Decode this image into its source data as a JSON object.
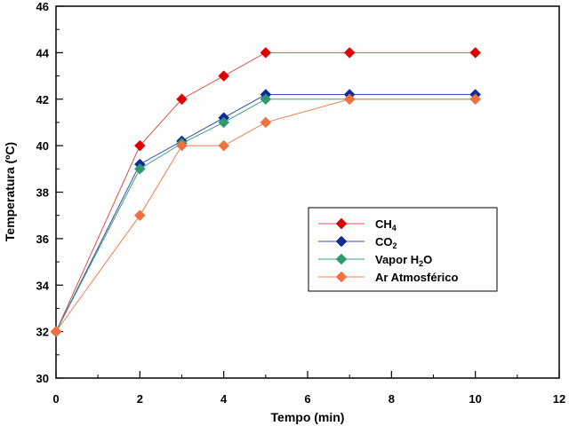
{
  "chart_data": {
    "type": "line",
    "title": "",
    "xlabel": "Tempo (min)",
    "ylabel": "Temperatura (ºC)",
    "xlim": [
      0,
      12
    ],
    "ylim": [
      30,
      46
    ],
    "xticks": [
      0,
      2,
      4,
      6,
      8,
      10,
      12
    ],
    "yticks": [
      30,
      32,
      34,
      36,
      38,
      40,
      42,
      44,
      46
    ],
    "grid": false,
    "legend_position": "center-right",
    "series": [
      {
        "name": "CH",
        "sub": "4",
        "tail": "",
        "line_color": "#e05050",
        "marker_color": "#e00000",
        "x": [
          0,
          2,
          3,
          4,
          5,
          7,
          10
        ],
        "y": [
          32,
          40,
          42,
          43,
          44,
          44,
          44
        ]
      },
      {
        "name": "CO",
        "sub": "2",
        "tail": "",
        "line_color": "#3a4aa8",
        "marker_color": "#0a2a9a",
        "x": [
          0,
          2,
          3,
          4,
          5,
          7,
          10
        ],
        "y": [
          32,
          39.2,
          40.2,
          41.2,
          42.2,
          42.2,
          42.2
        ]
      },
      {
        "name": "Vapor H",
        "sub": "2",
        "tail": "O",
        "line_color": "#3aa080",
        "marker_color": "#2e9a6e",
        "x": [
          0,
          2,
          3,
          4,
          5,
          7,
          10
        ],
        "y": [
          32,
          39,
          40.1,
          41,
          42,
          42,
          42
        ]
      },
      {
        "name": "Ar Atmosférico",
        "sub": "",
        "tail": "",
        "line_color": "#f08050",
        "marker_color": "#f07040",
        "x": [
          0,
          2,
          3,
          4,
          5,
          7,
          10
        ],
        "y": [
          32,
          37,
          40,
          40,
          41,
          42,
          42
        ]
      }
    ]
  }
}
